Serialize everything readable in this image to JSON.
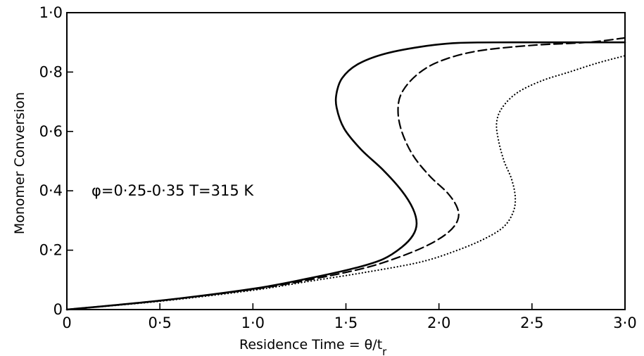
{
  "chart_data": {
    "type": "line",
    "xlabel": "Residence Time = θ/t",
    "xlabel_sub": "r",
    "ylabel": "Monomer Conversion",
    "xlim": [
      0,
      3.0
    ],
    "ylim": [
      0,
      1.0
    ],
    "x_ticks": [
      0,
      0.5,
      1.0,
      1.5,
      2.0,
      2.5,
      3.0
    ],
    "x_tick_labels": [
      "0",
      "0·5",
      "1·0",
      "1·5",
      "2·0",
      "2·5",
      "3·0"
    ],
    "y_ticks": [
      0,
      0.2,
      0.4,
      0.6,
      0.8,
      1.0
    ],
    "y_tick_labels": [
      "0",
      "0·2",
      "0·4",
      "0·6",
      "0·8",
      "1·0"
    ],
    "grid": false,
    "annotation": "φ=0·25-0·35  T=315 K",
    "series": [
      {
        "style": "solid",
        "points": [
          [
            0,
            0
          ],
          [
            0.5,
            0.03
          ],
          [
            1.0,
            0.07
          ],
          [
            1.3,
            0.105
          ],
          [
            1.55,
            0.14
          ],
          [
            1.7,
            0.17
          ],
          [
            1.8,
            0.21
          ],
          [
            1.86,
            0.25
          ],
          [
            1.88,
            0.29
          ],
          [
            1.86,
            0.34
          ],
          [
            1.8,
            0.4
          ],
          [
            1.7,
            0.47
          ],
          [
            1.58,
            0.54
          ],
          [
            1.49,
            0.61
          ],
          [
            1.45,
            0.68
          ],
          [
            1.45,
            0.73
          ],
          [
            1.48,
            0.78
          ],
          [
            1.56,
            0.825
          ],
          [
            1.7,
            0.86
          ],
          [
            1.9,
            0.885
          ],
          [
            2.1,
            0.898
          ],
          [
            2.4,
            0.9
          ],
          [
            3.0,
            0.9
          ]
        ]
      },
      {
        "style": "dashed",
        "points": [
          [
            0,
            0
          ],
          [
            0.5,
            0.03
          ],
          [
            1.0,
            0.068
          ],
          [
            1.3,
            0.1
          ],
          [
            1.6,
            0.14
          ],
          [
            1.8,
            0.18
          ],
          [
            1.95,
            0.22
          ],
          [
            2.05,
            0.26
          ],
          [
            2.1,
            0.3
          ],
          [
            2.1,
            0.34
          ],
          [
            2.05,
            0.39
          ],
          [
            1.95,
            0.45
          ],
          [
            1.86,
            0.52
          ],
          [
            1.8,
            0.6
          ],
          [
            1.78,
            0.67
          ],
          [
            1.8,
            0.73
          ],
          [
            1.88,
            0.79
          ],
          [
            2.0,
            0.835
          ],
          [
            2.2,
            0.87
          ],
          [
            2.5,
            0.89
          ],
          [
            2.8,
            0.9
          ],
          [
            3.0,
            0.915
          ]
        ]
      },
      {
        "style": "dotted",
        "points": [
          [
            0,
            0
          ],
          [
            0.5,
            0.028
          ],
          [
            1.0,
            0.065
          ],
          [
            1.3,
            0.095
          ],
          [
            1.6,
            0.125
          ],
          [
            1.9,
            0.16
          ],
          [
            2.1,
            0.2
          ],
          [
            2.25,
            0.24
          ],
          [
            2.35,
            0.28
          ],
          [
            2.4,
            0.33
          ],
          [
            2.41,
            0.38
          ],
          [
            2.39,
            0.44
          ],
          [
            2.35,
            0.5
          ],
          [
            2.32,
            0.57
          ],
          [
            2.31,
            0.63
          ],
          [
            2.34,
            0.68
          ],
          [
            2.42,
            0.73
          ],
          [
            2.55,
            0.77
          ],
          [
            2.7,
            0.8
          ],
          [
            2.85,
            0.83
          ],
          [
            3.0,
            0.855
          ]
        ]
      }
    ]
  }
}
